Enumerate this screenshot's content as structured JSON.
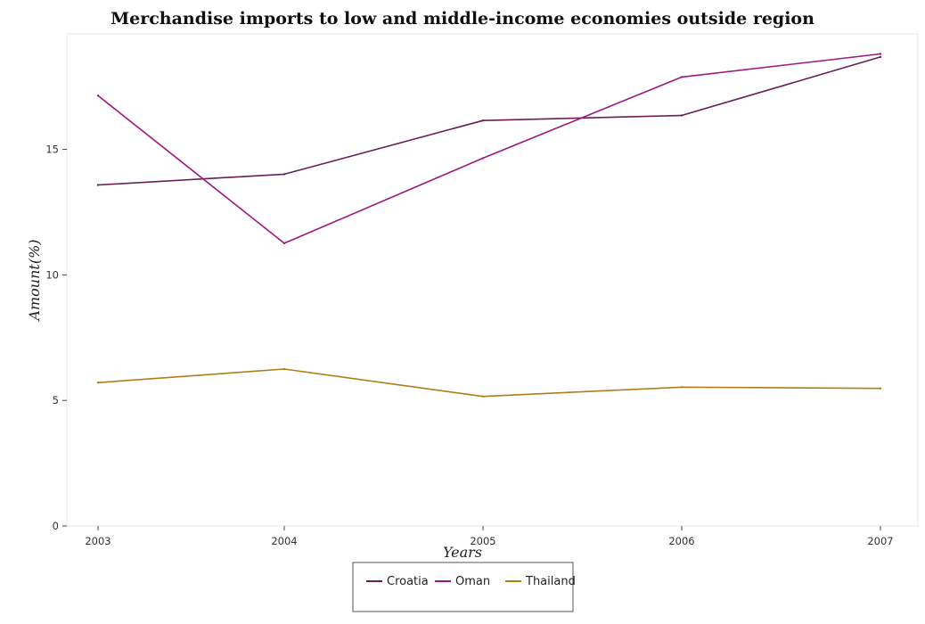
{
  "chart_data": {
    "type": "line",
    "title": "Merchandise imports to low and middle-income economies outside region",
    "xlabel": "Years",
    "ylabel": "Amount(%)",
    "categories": [
      "2003",
      "2004",
      "2005",
      "2006",
      "2007"
    ],
    "ylim": [
      0,
      19.6
    ],
    "yticks": [
      0,
      5,
      10,
      15
    ],
    "grid": false,
    "legend_position": "bottom-center",
    "series": [
      {
        "name": "Croatia",
        "color": "#6b1f5a",
        "values": [
          13.58,
          14.01,
          16.15,
          16.35,
          18.68
        ]
      },
      {
        "name": "Oman",
        "color": "#a0177f",
        "values": [
          17.14,
          11.26,
          14.65,
          17.88,
          18.8
        ]
      },
      {
        "name": "Thailand",
        "color": "#b07d16",
        "values": [
          5.71,
          6.25,
          5.16,
          5.53,
          5.48
        ]
      }
    ]
  }
}
